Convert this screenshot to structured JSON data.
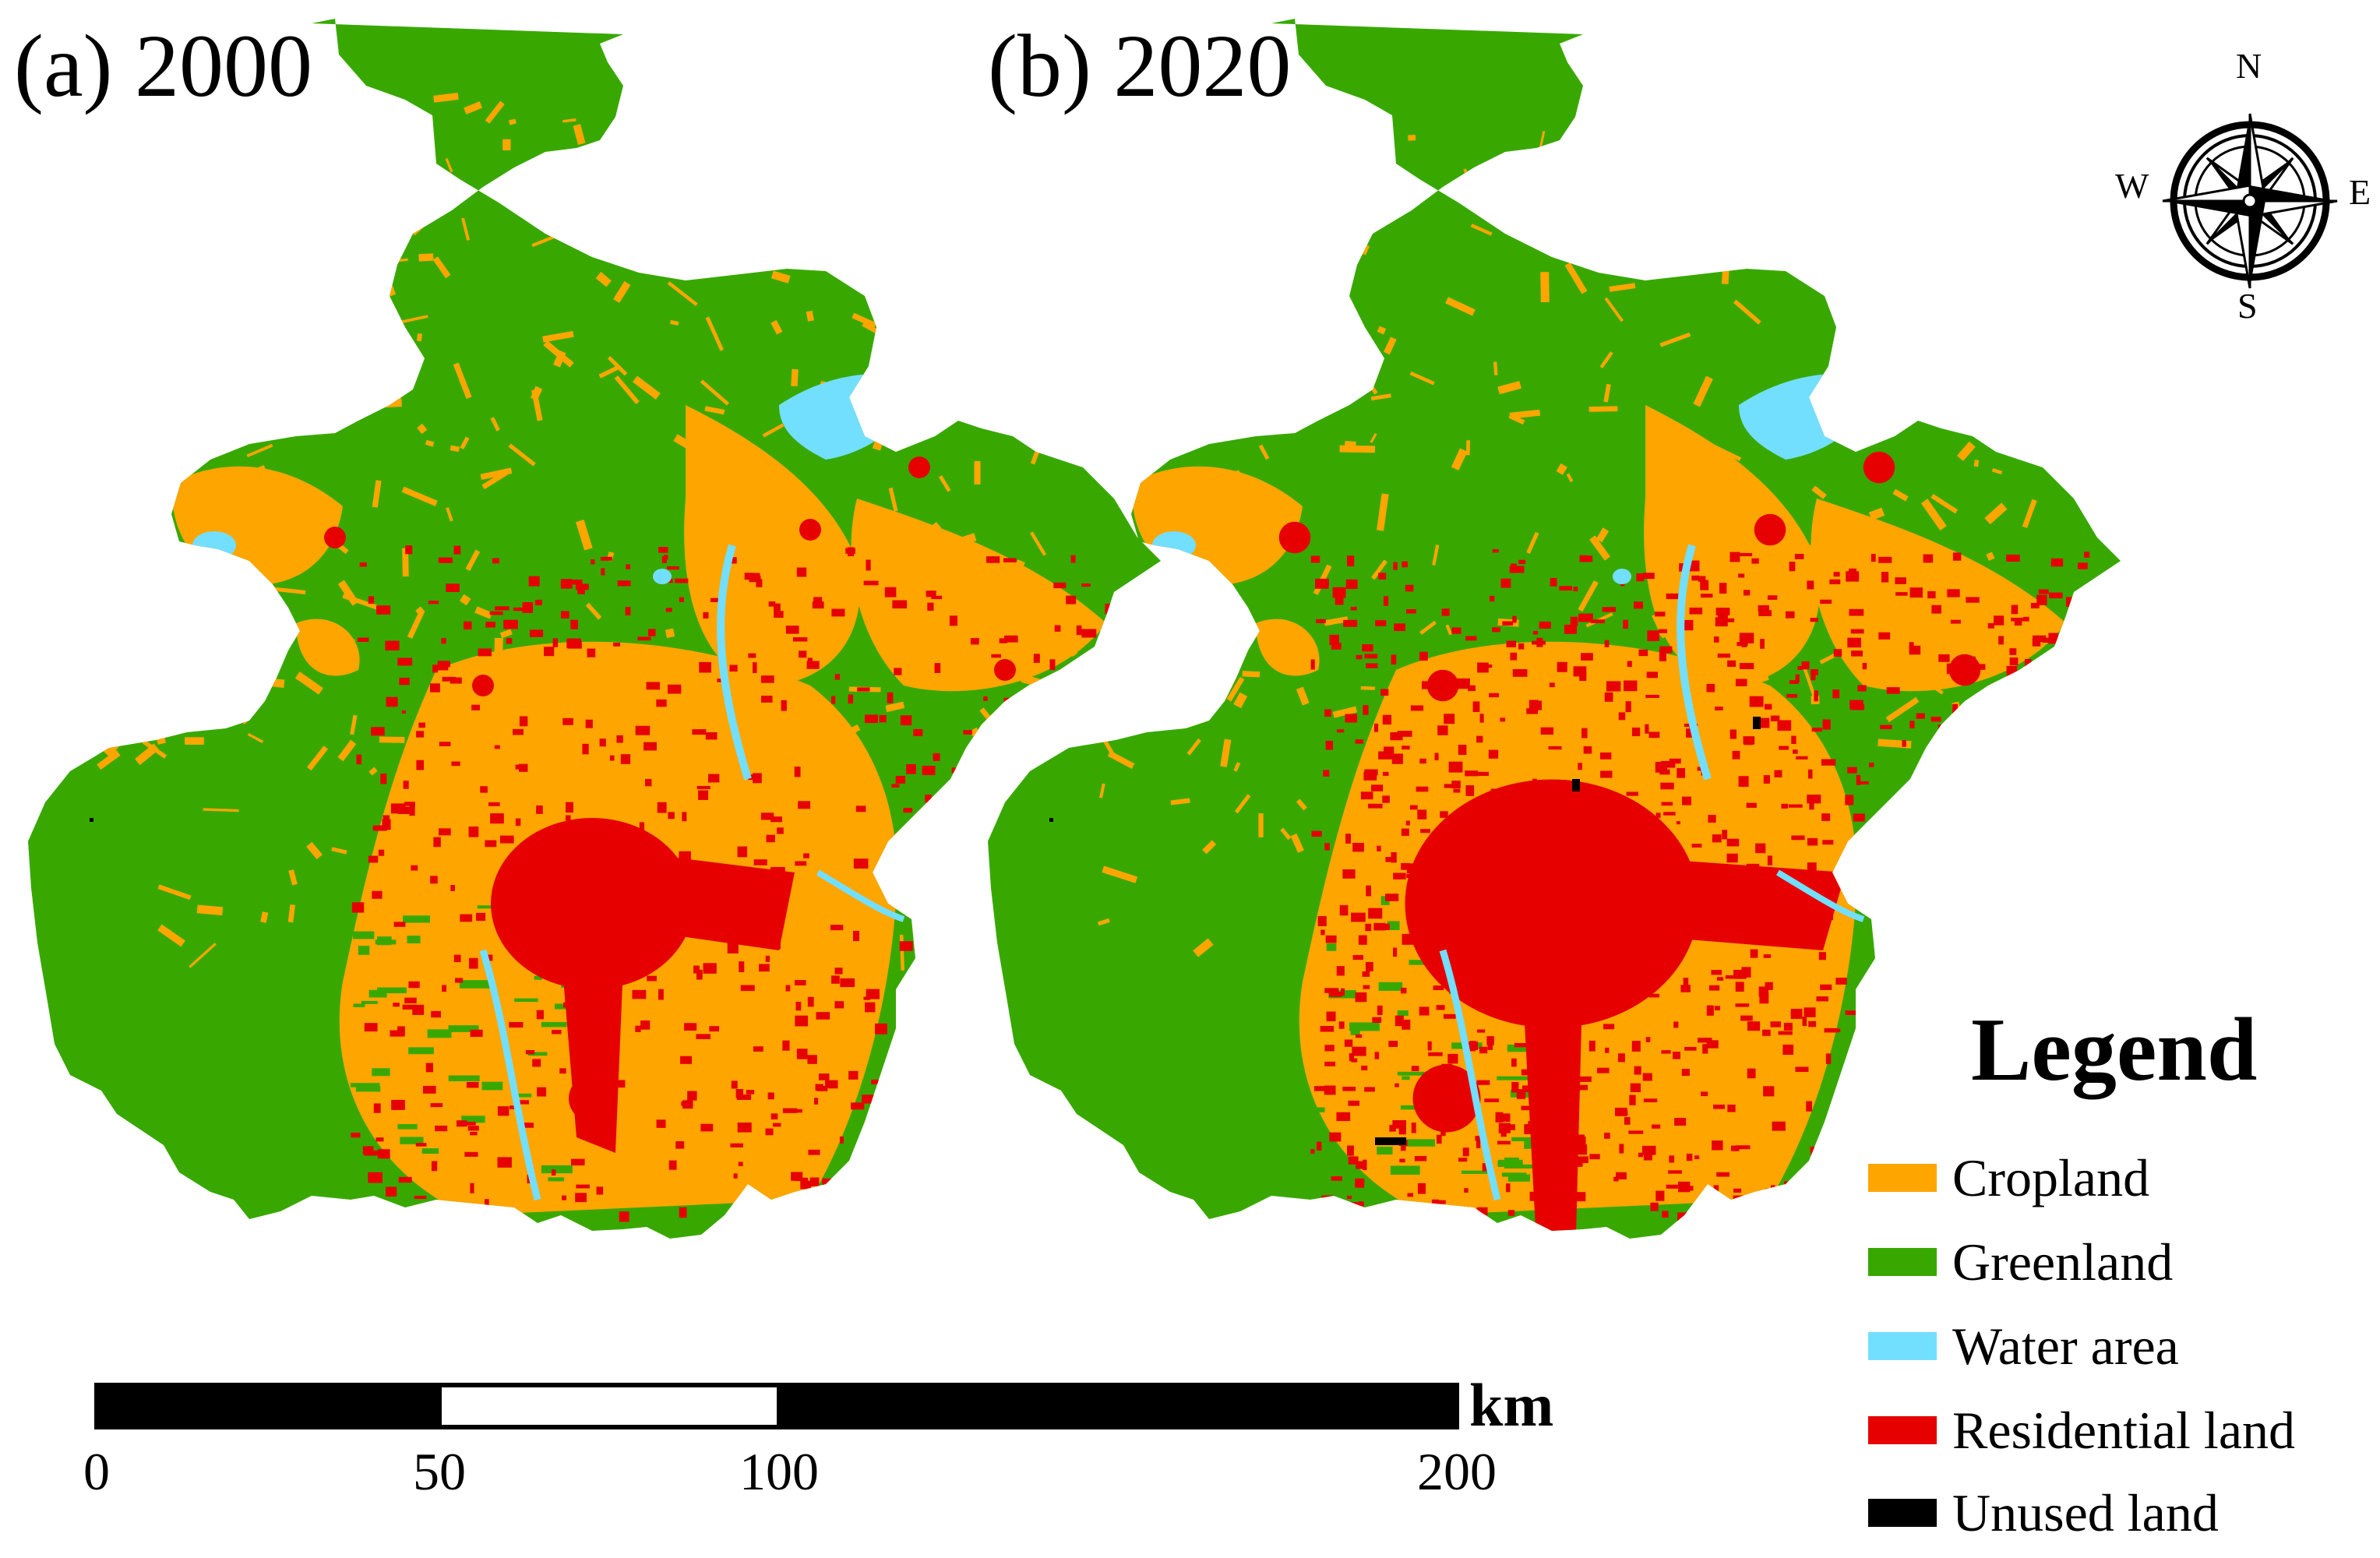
{
  "panels": [
    {
      "title": "(a) 2000"
    },
    {
      "title": "(b) 2020"
    }
  ],
  "legend": {
    "title": "Legend",
    "items": [
      {
        "label": "Cropland",
        "color": "#ffa500"
      },
      {
        "label": "Greenland",
        "color": "#38a800"
      },
      {
        "label": "Water area",
        "color": "#73dfff"
      },
      {
        "label": "Residential land",
        "color": "#e60000"
      },
      {
        "label": "Unused land",
        "color": "#000000"
      }
    ]
  },
  "scale_bar": {
    "unit": "km",
    "ticks": [
      "0",
      "50",
      "100",
      "200"
    ]
  },
  "compass": {
    "n": "N",
    "s": "S",
    "e": "E",
    "w": "W"
  }
}
